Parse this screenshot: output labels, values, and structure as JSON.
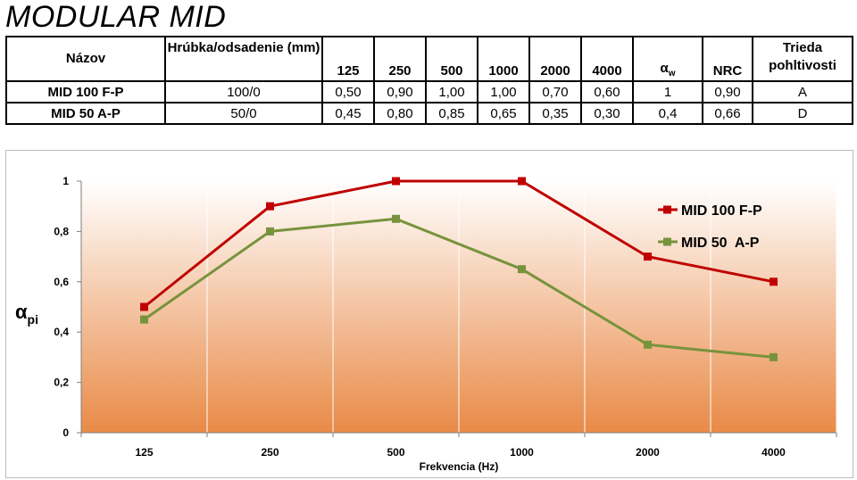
{
  "page_title": "MODULAR MID",
  "table": {
    "headers": [
      "Názov",
      "Hrúbka/odsadenie (mm)",
      "125",
      "250",
      "500",
      "1000",
      "2000",
      "4000",
      "α",
      "NRC",
      "Trieda pohltivosti"
    ],
    "alpha_subscript": "w",
    "rows": [
      [
        "MID 100 F-P",
        "100/0",
        "0,50",
        "0,90",
        "1,00",
        "1,00",
        "0,70",
        "0,60",
        "1",
        "0,90",
        "A"
      ],
      [
        "MID 50  A-P",
        "50/0",
        "0,45",
        "0,80",
        "0,85",
        "0,65",
        "0,35",
        "0,30",
        "0,4",
        "0,66",
        "D"
      ]
    ]
  },
  "chart_data": {
    "type": "line",
    "categories": [
      "125",
      "250",
      "500",
      "1000",
      "2000",
      "4000"
    ],
    "series": [
      {
        "name": "MID 100 F-P",
        "color": "#c00000",
        "values": [
          0.5,
          0.9,
          1.0,
          1.0,
          0.7,
          0.6
        ]
      },
      {
        "name": "MID 50  A-P",
        "color": "#77933c",
        "values": [
          0.45,
          0.8,
          0.85,
          0.65,
          0.35,
          0.3
        ]
      }
    ],
    "xlabel": "Frekvencia (Hz)",
    "ylabel": "α",
    "ylabel_subscript": "pi",
    "ylim": [
      0,
      1
    ],
    "yticks": [
      "0",
      "0,2",
      "0,4",
      "0,6",
      "0,8",
      "1"
    ],
    "ytick_values": [
      0,
      0.2,
      0.4,
      0.6,
      0.8,
      1
    ],
    "grid": "vertical",
    "legend_position": "right",
    "background_gradient": [
      "#ffffff",
      "#e98a47"
    ]
  }
}
